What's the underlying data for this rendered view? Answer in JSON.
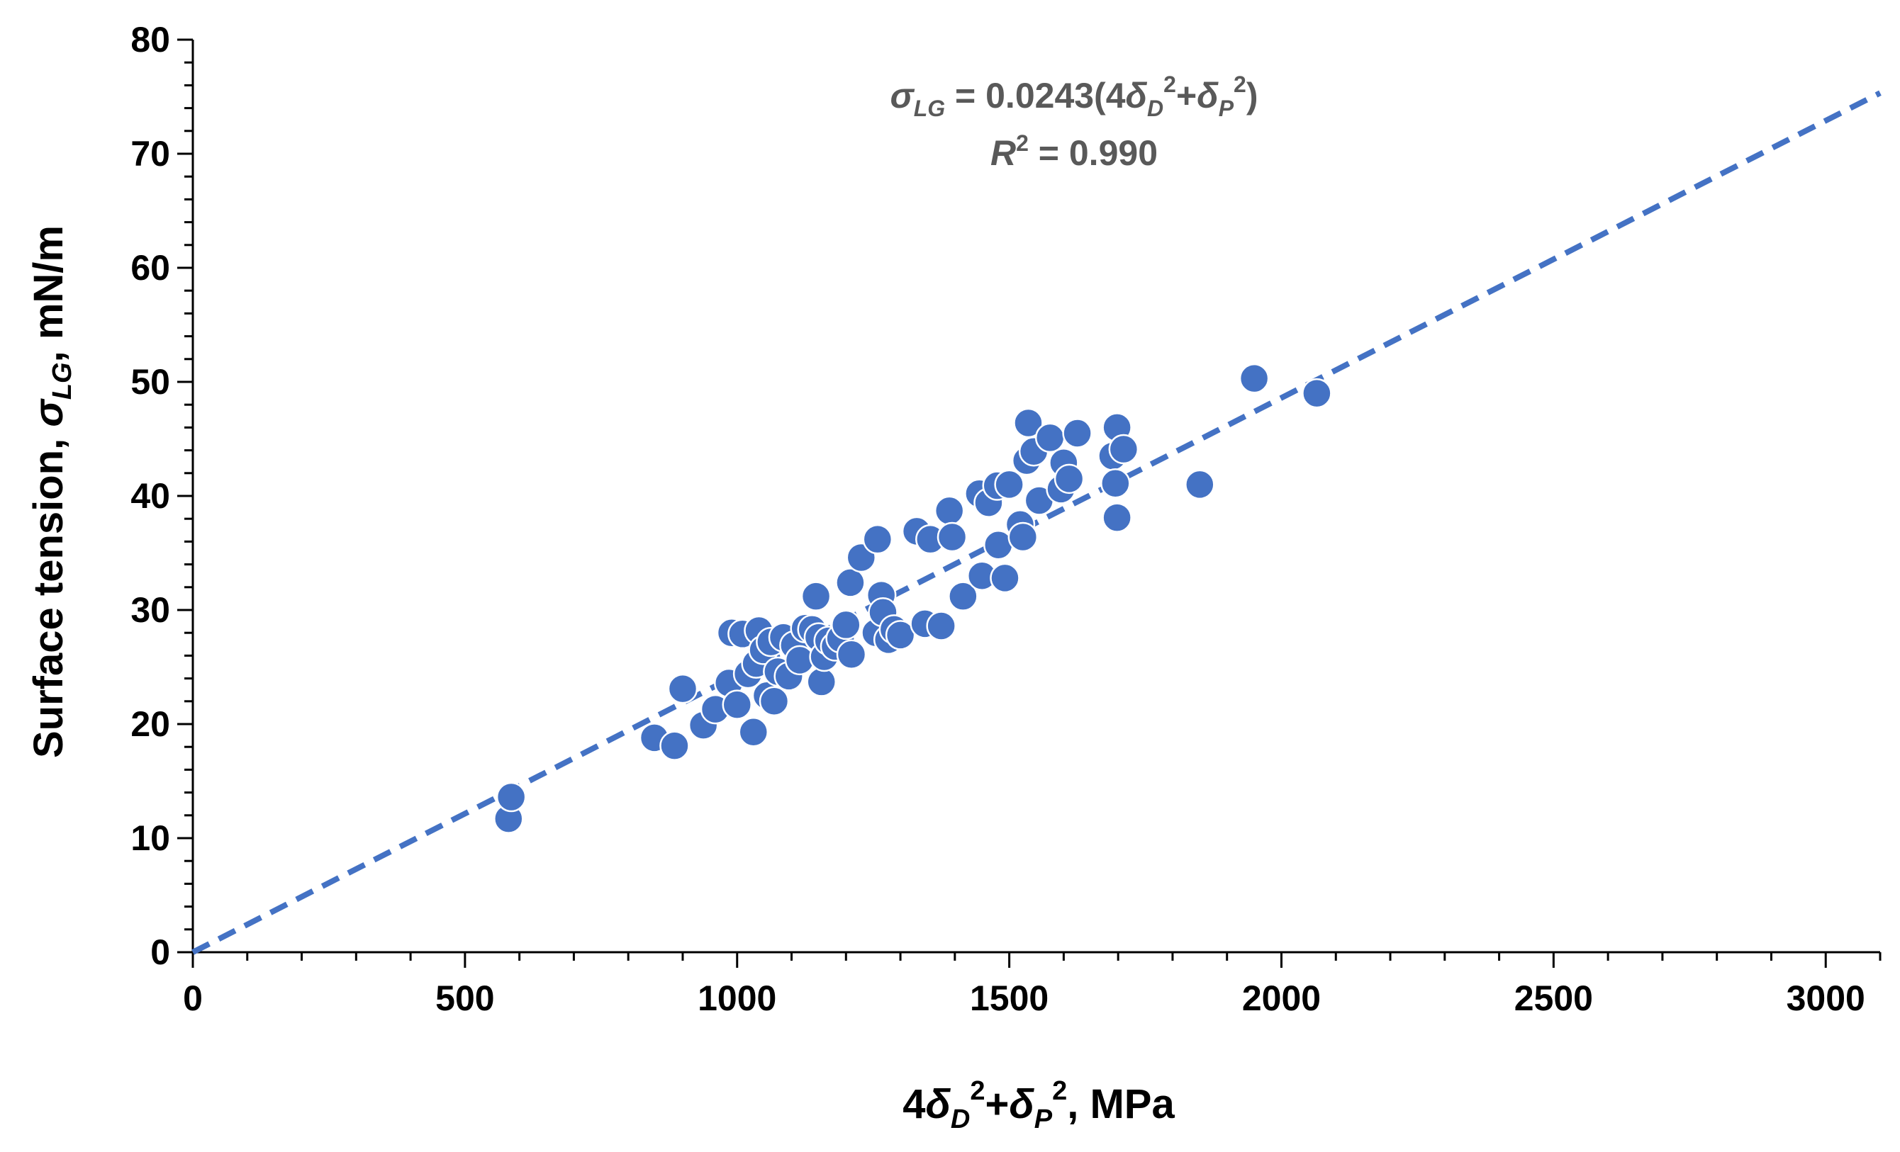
{
  "chart_data": {
    "type": "scatter",
    "title": "",
    "xlabel": {
      "prefix": "4",
      "d1": "δ",
      "d1_sub": "D",
      "d1_sup": "2",
      "plus": "+",
      "d2": "δ",
      "d2_sub": "P",
      "d2_sup": "2",
      "suffix": ", MPa"
    },
    "ylabel": {
      "prefix": "Surface tension, ",
      "sym": "σ",
      "sub": "LG",
      "suffix": ", mN/m"
    },
    "xlim": [
      0,
      3100
    ],
    "ylim": [
      0,
      80
    ],
    "x_ticks": [
      0,
      500,
      1000,
      1500,
      2000,
      2500,
      3000
    ],
    "y_ticks": [
      0,
      10,
      20,
      30,
      40,
      50,
      60,
      70,
      80
    ],
    "grid": false,
    "colors": {
      "series": "#4472C4",
      "annotation": "#595959",
      "axis": "#000000"
    },
    "annotation": {
      "eq_sym": "σ",
      "eq_sub": "LG",
      "eq_rest1": " = 0.0243(4",
      "eq_d1": "δ",
      "eq_d1_sub": "D",
      "eq_d1_sup": "2",
      "eq_plus": "+",
      "eq_d2": "δ",
      "eq_d2_sub": "P",
      "eq_d2_sup": "2",
      "eq_close": ")",
      "r2_sym": "R",
      "r2_sup": "2",
      "r2_rest": " = 0.990"
    },
    "trendline": {
      "name": "fit",
      "slope": 0.0243,
      "intercept": 0,
      "x_range": [
        0,
        3100
      ],
      "style": "dashed"
    },
    "series": [
      {
        "name": "data",
        "points": [
          [
            580,
            11.7
          ],
          [
            585,
            13.6
          ],
          [
            848,
            18.8
          ],
          [
            885,
            18.1
          ],
          [
            900,
            23.1
          ],
          [
            938,
            19.9
          ],
          [
            960,
            21.3
          ],
          [
            985,
            23.6
          ],
          [
            990,
            28.0
          ],
          [
            1000,
            21.7
          ],
          [
            1010,
            27.9
          ],
          [
            1020,
            24.4
          ],
          [
            1030,
            19.3
          ],
          [
            1035,
            25.3
          ],
          [
            1040,
            28.2
          ],
          [
            1048,
            26.5
          ],
          [
            1055,
            22.5
          ],
          [
            1062,
            27.2
          ],
          [
            1068,
            22.0
          ],
          [
            1075,
            24.6
          ],
          [
            1085,
            27.6
          ],
          [
            1095,
            24.2
          ],
          [
            1105,
            26.9
          ],
          [
            1115,
            25.6
          ],
          [
            1125,
            28.4
          ],
          [
            1138,
            28.3
          ],
          [
            1145,
            31.2
          ],
          [
            1150,
            27.6
          ],
          [
            1155,
            23.7
          ],
          [
            1160,
            25.9
          ],
          [
            1168,
            27.3
          ],
          [
            1180,
            26.8
          ],
          [
            1190,
            27.5
          ],
          [
            1200,
            28.7
          ],
          [
            1208,
            32.4
          ],
          [
            1210,
            26.1
          ],
          [
            1228,
            34.6
          ],
          [
            1255,
            28.0
          ],
          [
            1258,
            36.2
          ],
          [
            1265,
            31.3
          ],
          [
            1268,
            29.8
          ],
          [
            1278,
            27.4
          ],
          [
            1288,
            28.3
          ],
          [
            1300,
            27.8
          ],
          [
            1330,
            36.9
          ],
          [
            1345,
            28.8
          ],
          [
            1355,
            36.2
          ],
          [
            1375,
            28.6
          ],
          [
            1390,
            38.7
          ],
          [
            1395,
            36.4
          ],
          [
            1415,
            31.2
          ],
          [
            1445,
            40.2
          ],
          [
            1450,
            33.0
          ],
          [
            1462,
            39.4
          ],
          [
            1478,
            40.9
          ],
          [
            1480,
            35.7
          ],
          [
            1492,
            32.8
          ],
          [
            1500,
            41.0
          ],
          [
            1520,
            37.5
          ],
          [
            1525,
            36.4
          ],
          [
            1532,
            43.1
          ],
          [
            1535,
            46.4
          ],
          [
            1545,
            43.9
          ],
          [
            1555,
            39.6
          ],
          [
            1575,
            45.1
          ],
          [
            1595,
            40.6
          ],
          [
            1600,
            42.9
          ],
          [
            1610,
            41.5
          ],
          [
            1625,
            45.5
          ],
          [
            1690,
            43.5
          ],
          [
            1695,
            41.1
          ],
          [
            1698,
            46.0
          ],
          [
            1698,
            38.1
          ],
          [
            1710,
            44.1
          ],
          [
            1850,
            41.0
          ],
          [
            1950,
            50.3
          ],
          [
            2065,
            49.0
          ]
        ]
      }
    ]
  }
}
